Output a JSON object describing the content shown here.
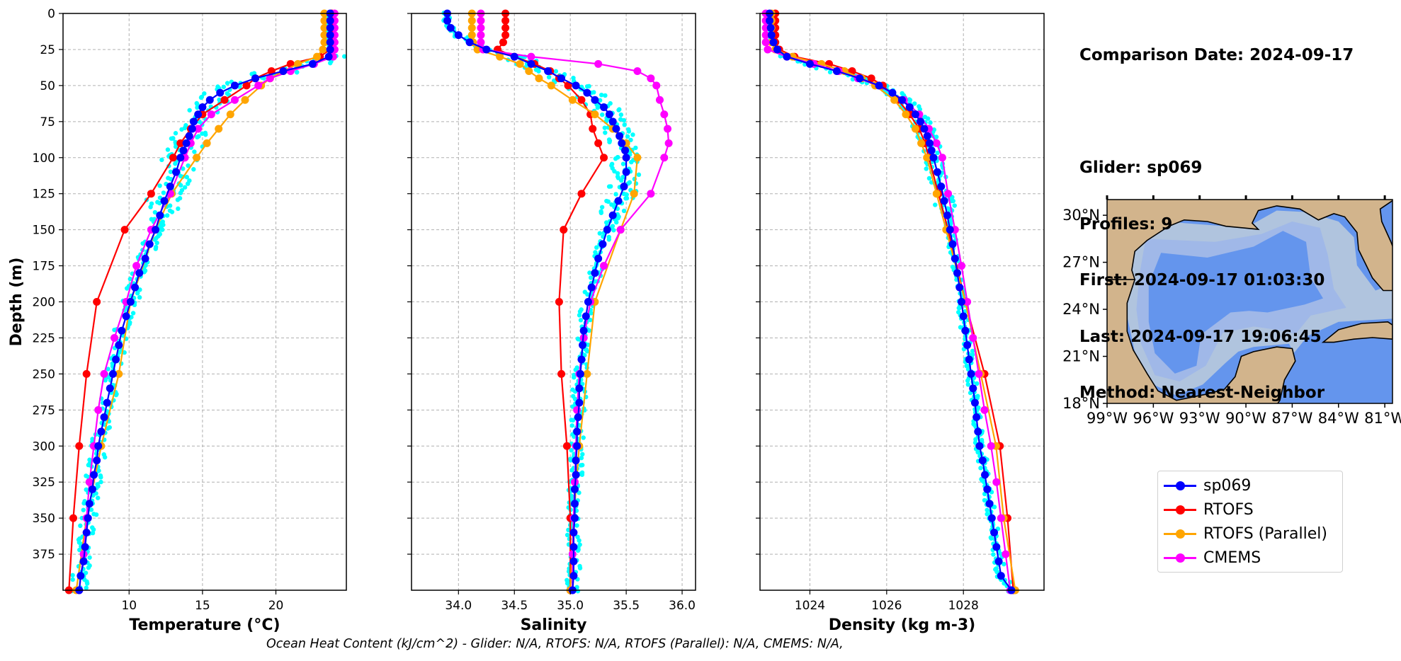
{
  "info": {
    "comparison_date": "Comparison Date: 2024-09-17",
    "glider": "Glider: sp069",
    "profiles": "Profiles: 9",
    "first": "First: 2024-09-17 01:03:30",
    "last": "Last: 2024-09-17 19:06:45",
    "method": "Method: Nearest-Neighbor"
  },
  "footer": "Ocean Heat Content (kJ/cm^2) - Glider: N/A,  RTOFS: N/A,  RTOFS (Parallel): N/A,  CMEMS: N/A,",
  "colors": {
    "sp069": "#0000ff",
    "rtofs": "#ff0000",
    "rtofs_parallel": "#ffa500",
    "cmems": "#ff00ff",
    "glider_points": "#00ffff",
    "map_land": "#d2b48c",
    "map_shelf": "#b0c4de",
    "map_slope": "#a0b8e8",
    "map_deep": "#6495ed"
  },
  "legend": [
    {
      "key": "sp069",
      "label": "sp069"
    },
    {
      "key": "rtofs",
      "label": "RTOFS"
    },
    {
      "key": "rtofs_parallel",
      "label": "RTOFS (Parallel)"
    },
    {
      "key": "cmems",
      "label": "CMEMS"
    }
  ],
  "map": {
    "lat_ticks": [
      "18°N",
      "21°N",
      "24°N",
      "27°N",
      "30°N"
    ],
    "lon_ticks": [
      "99°W",
      "96°W",
      "93°W",
      "90°W",
      "87°W",
      "84°W",
      "81°W"
    ],
    "lat_range": [
      18,
      31
    ],
    "lon_range": [
      -99,
      -80.5
    ]
  },
  "chart_data": [
    {
      "type": "line",
      "xlabel": "Temperature (°C)",
      "ylabel": "Depth (m)",
      "xlim": [
        5.5,
        24.8
      ],
      "ylim": [
        400,
        0
      ],
      "xticks": [
        10,
        15,
        20
      ],
      "yticks": [
        0,
        25,
        50,
        75,
        100,
        125,
        150,
        175,
        200,
        225,
        250,
        275,
        300,
        325,
        350,
        375
      ],
      "grid": true,
      "series": [
        {
          "name": "sp069",
          "depth": [
            0,
            5,
            10,
            15,
            20,
            25,
            30,
            35,
            40,
            45,
            50,
            55,
            60,
            65,
            70,
            75,
            80,
            85,
            90,
            95,
            100,
            110,
            120,
            130,
            140,
            150,
            160,
            170,
            180,
            190,
            200,
            210,
            220,
            230,
            240,
            250,
            260,
            270,
            280,
            290,
            300,
            310,
            320,
            330,
            340,
            350,
            360,
            370,
            380,
            390,
            400
          ],
          "values": [
            23.7,
            23.7,
            23.7,
            23.7,
            23.7,
            23.7,
            23.6,
            22.5,
            20.5,
            18.6,
            17.2,
            16.2,
            15.5,
            15.0,
            14.7,
            14.4,
            14.3,
            14.1,
            13.9,
            13.7,
            13.5,
            13.2,
            12.8,
            12.4,
            12.1,
            11.8,
            11.4,
            11.1,
            10.7,
            10.4,
            10.1,
            9.8,
            9.5,
            9.3,
            9.1,
            8.9,
            8.7,
            8.5,
            8.3,
            8.1,
            7.9,
            7.8,
            7.6,
            7.5,
            7.3,
            7.2,
            7.1,
            7.0,
            6.9,
            6.7,
            6.6
          ]
        },
        {
          "name": "RTOFS",
          "depth": [
            0,
            5,
            10,
            15,
            20,
            25,
            30,
            35,
            40,
            45,
            50,
            60,
            70,
            80,
            90,
            100,
            125,
            150,
            200,
            250,
            300,
            350,
            400
          ],
          "values": [
            23.8,
            23.8,
            23.8,
            23.8,
            23.8,
            23.7,
            23.0,
            21.0,
            19.7,
            18.6,
            18.0,
            16.5,
            15.0,
            14.2,
            13.5,
            13.0,
            11.5,
            9.7,
            7.8,
            7.1,
            6.6,
            6.2,
            5.9
          ]
        },
        {
          "name": "RTOFS (Parallel)",
          "depth": [
            0,
            5,
            10,
            15,
            20,
            25,
            30,
            35,
            40,
            45,
            50,
            60,
            70,
            80,
            90,
            100,
            125,
            150,
            200,
            250,
            300,
            350,
            400
          ],
          "values": [
            23.3,
            23.3,
            23.3,
            23.3,
            23.3,
            23.2,
            22.8,
            21.5,
            20.5,
            19.6,
            19.0,
            17.9,
            16.9,
            16.1,
            15.3,
            14.6,
            12.9,
            11.8,
            10.1,
            9.3,
            8.1,
            7.1,
            6.4
          ]
        },
        {
          "name": "CMEMS",
          "depth": [
            0,
            5,
            10,
            15,
            20,
            25,
            30,
            35,
            40,
            45,
            50,
            60,
            70,
            80,
            90,
            100,
            125,
            150,
            175,
            200,
            225,
            250,
            275,
            300,
            325,
            350,
            375,
            400
          ],
          "values": [
            24.0,
            24.0,
            24.0,
            24.0,
            24.0,
            24.0,
            23.9,
            22.6,
            21.0,
            19.6,
            18.8,
            17.2,
            15.6,
            14.7,
            14.2,
            13.8,
            12.8,
            11.5,
            10.5,
            9.8,
            9.0,
            8.3,
            7.9,
            7.6,
            7.3,
            7.1,
            6.9,
            6.6
          ]
        }
      ]
    },
    {
      "type": "line",
      "xlabel": "Salinity",
      "xlim": [
        33.58,
        36.12
      ],
      "ylim": [
        400,
        0
      ],
      "xticks": [
        34.0,
        34.5,
        35.0,
        35.5,
        36.0
      ],
      "grid": true,
      "series": [
        {
          "name": "sp069",
          "depth": [
            0,
            5,
            10,
            15,
            20,
            25,
            30,
            35,
            40,
            45,
            50,
            55,
            60,
            65,
            70,
            75,
            80,
            85,
            90,
            95,
            100,
            110,
            120,
            130,
            140,
            150,
            160,
            170,
            180,
            190,
            200,
            210,
            220,
            230,
            240,
            250,
            260,
            270,
            280,
            290,
            300,
            310,
            320,
            330,
            340,
            350,
            360,
            370,
            380,
            390,
            400
          ],
          "values": [
            33.9,
            33.9,
            33.93,
            34.0,
            34.1,
            34.25,
            34.5,
            34.65,
            34.8,
            34.92,
            35.05,
            35.15,
            35.22,
            35.3,
            35.35,
            35.38,
            35.41,
            35.44,
            35.46,
            35.49,
            35.5,
            35.5,
            35.48,
            35.43,
            35.38,
            35.33,
            35.29,
            35.25,
            35.22,
            35.19,
            35.16,
            35.14,
            35.12,
            35.11,
            35.1,
            35.09,
            35.08,
            35.08,
            35.07,
            35.06,
            35.06,
            35.05,
            35.05,
            35.04,
            35.04,
            35.04,
            35.03,
            35.03,
            35.03,
            35.03,
            35.02
          ]
        },
        {
          "name": "RTOFS",
          "depth": [
            0,
            5,
            10,
            15,
            20,
            25,
            30,
            35,
            40,
            45,
            50,
            60,
            70,
            80,
            90,
            100,
            125,
            150,
            200,
            250,
            300,
            350,
            400
          ],
          "values": [
            34.42,
            34.42,
            34.42,
            34.42,
            34.4,
            34.35,
            34.5,
            34.68,
            34.82,
            34.9,
            34.98,
            35.1,
            35.18,
            35.2,
            35.25,
            35.3,
            35.1,
            34.94,
            34.9,
            34.92,
            34.97,
            35.0,
            35.0
          ]
        },
        {
          "name": "RTOFS (Parallel)",
          "depth": [
            0,
            5,
            10,
            15,
            20,
            25,
            30,
            35,
            40,
            45,
            50,
            60,
            70,
            80,
            90,
            100,
            125,
            150,
            200,
            250,
            300,
            350,
            400
          ],
          "values": [
            34.12,
            34.12,
            34.12,
            34.12,
            34.13,
            34.17,
            34.37,
            34.55,
            34.63,
            34.72,
            34.83,
            35.02,
            35.22,
            35.38,
            35.5,
            35.6,
            35.57,
            35.45,
            35.22,
            35.15,
            35.08,
            35.03,
            35.0
          ]
        },
        {
          "name": "CMEMS",
          "depth": [
            0,
            5,
            10,
            15,
            20,
            25,
            30,
            35,
            40,
            45,
            50,
            60,
            70,
            80,
            90,
            100,
            125,
            150,
            175,
            200,
            225,
            250,
            275,
            300,
            325,
            350,
            375,
            400
          ],
          "values": [
            34.2,
            34.2,
            34.2,
            34.2,
            34.2,
            34.22,
            34.65,
            35.25,
            35.6,
            35.72,
            35.77,
            35.8,
            35.84,
            35.87,
            35.88,
            35.84,
            35.72,
            35.45,
            35.3,
            35.18,
            35.12,
            35.08,
            35.06,
            35.05,
            35.04,
            35.03,
            35.02,
            35.02
          ]
        }
      ]
    },
    {
      "type": "line",
      "xlabel": "Density (kg m-3)",
      "xlim": [
        1022.7,
        1030.1
      ],
      "ylim": [
        400,
        0
      ],
      "xticks": [
        1024,
        1026,
        1028
      ],
      "grid": true,
      "series": [
        {
          "name": "sp069",
          "depth": [
            0,
            5,
            10,
            15,
            20,
            25,
            30,
            35,
            40,
            45,
            50,
            55,
            60,
            65,
            70,
            75,
            80,
            85,
            90,
            95,
            100,
            110,
            120,
            130,
            140,
            150,
            160,
            170,
            180,
            190,
            200,
            210,
            220,
            230,
            240,
            250,
            260,
            270,
            280,
            290,
            300,
            310,
            320,
            330,
            340,
            350,
            360,
            370,
            380,
            390,
            400
          ],
          "values": [
            1022.95,
            1022.95,
            1022.98,
            1023.0,
            1023.05,
            1023.15,
            1023.4,
            1024.0,
            1024.7,
            1025.3,
            1025.8,
            1026.15,
            1026.4,
            1026.6,
            1026.75,
            1026.88,
            1026.98,
            1027.06,
            1027.12,
            1027.17,
            1027.22,
            1027.32,
            1027.42,
            1027.5,
            1027.58,
            1027.65,
            1027.72,
            1027.78,
            1027.84,
            1027.9,
            1027.95,
            1028.0,
            1028.05,
            1028.1,
            1028.15,
            1028.2,
            1028.25,
            1028.3,
            1028.34,
            1028.38,
            1028.42,
            1028.5,
            1028.56,
            1028.62,
            1028.68,
            1028.74,
            1028.8,
            1028.86,
            1028.92,
            1028.98,
            1029.25
          ]
        },
        {
          "name": "RTOFS",
          "depth": [
            0,
            5,
            10,
            15,
            20,
            25,
            30,
            35,
            40,
            45,
            50,
            60,
            70,
            80,
            90,
            100,
            125,
            150,
            200,
            250,
            300,
            350,
            400
          ],
          "values": [
            1023.1,
            1023.1,
            1023.1,
            1023.1,
            1023.1,
            1023.2,
            1023.6,
            1024.5,
            1025.1,
            1025.6,
            1025.9,
            1026.3,
            1026.6,
            1026.85,
            1027.0,
            1027.1,
            1027.35,
            1027.6,
            1028.05,
            1028.55,
            1028.95,
            1029.15,
            1029.3
          ]
        },
        {
          "name": "RTOFS (Parallel)",
          "depth": [
            0,
            5,
            10,
            15,
            20,
            25,
            30,
            35,
            40,
            45,
            50,
            60,
            70,
            80,
            90,
            100,
            125,
            150,
            200,
            250,
            300,
            350,
            400
          ],
          "values": [
            1023.0,
            1023.0,
            1023.0,
            1023.0,
            1023.0,
            1023.1,
            1023.55,
            1024.3,
            1024.9,
            1025.35,
            1025.7,
            1026.2,
            1026.5,
            1026.75,
            1026.9,
            1027.05,
            1027.3,
            1027.55,
            1028.05,
            1028.45,
            1028.85,
            1029.05,
            1029.35
          ]
        },
        {
          "name": "CMEMS",
          "depth": [
            0,
            5,
            10,
            15,
            20,
            25,
            30,
            35,
            40,
            45,
            50,
            60,
            70,
            80,
            90,
            100,
            125,
            150,
            175,
            200,
            225,
            250,
            275,
            300,
            325,
            350,
            375,
            400
          ],
          "values": [
            1022.85,
            1022.85,
            1022.85,
            1022.85,
            1022.85,
            1022.9,
            1023.4,
            1024.1,
            1024.75,
            1025.25,
            1025.8,
            1026.45,
            1026.85,
            1027.1,
            1027.3,
            1027.45,
            1027.6,
            1027.78,
            1027.95,
            1028.1,
            1028.25,
            1028.4,
            1028.55,
            1028.72,
            1028.86,
            1028.98,
            1029.1,
            1029.22
          ]
        }
      ]
    }
  ]
}
